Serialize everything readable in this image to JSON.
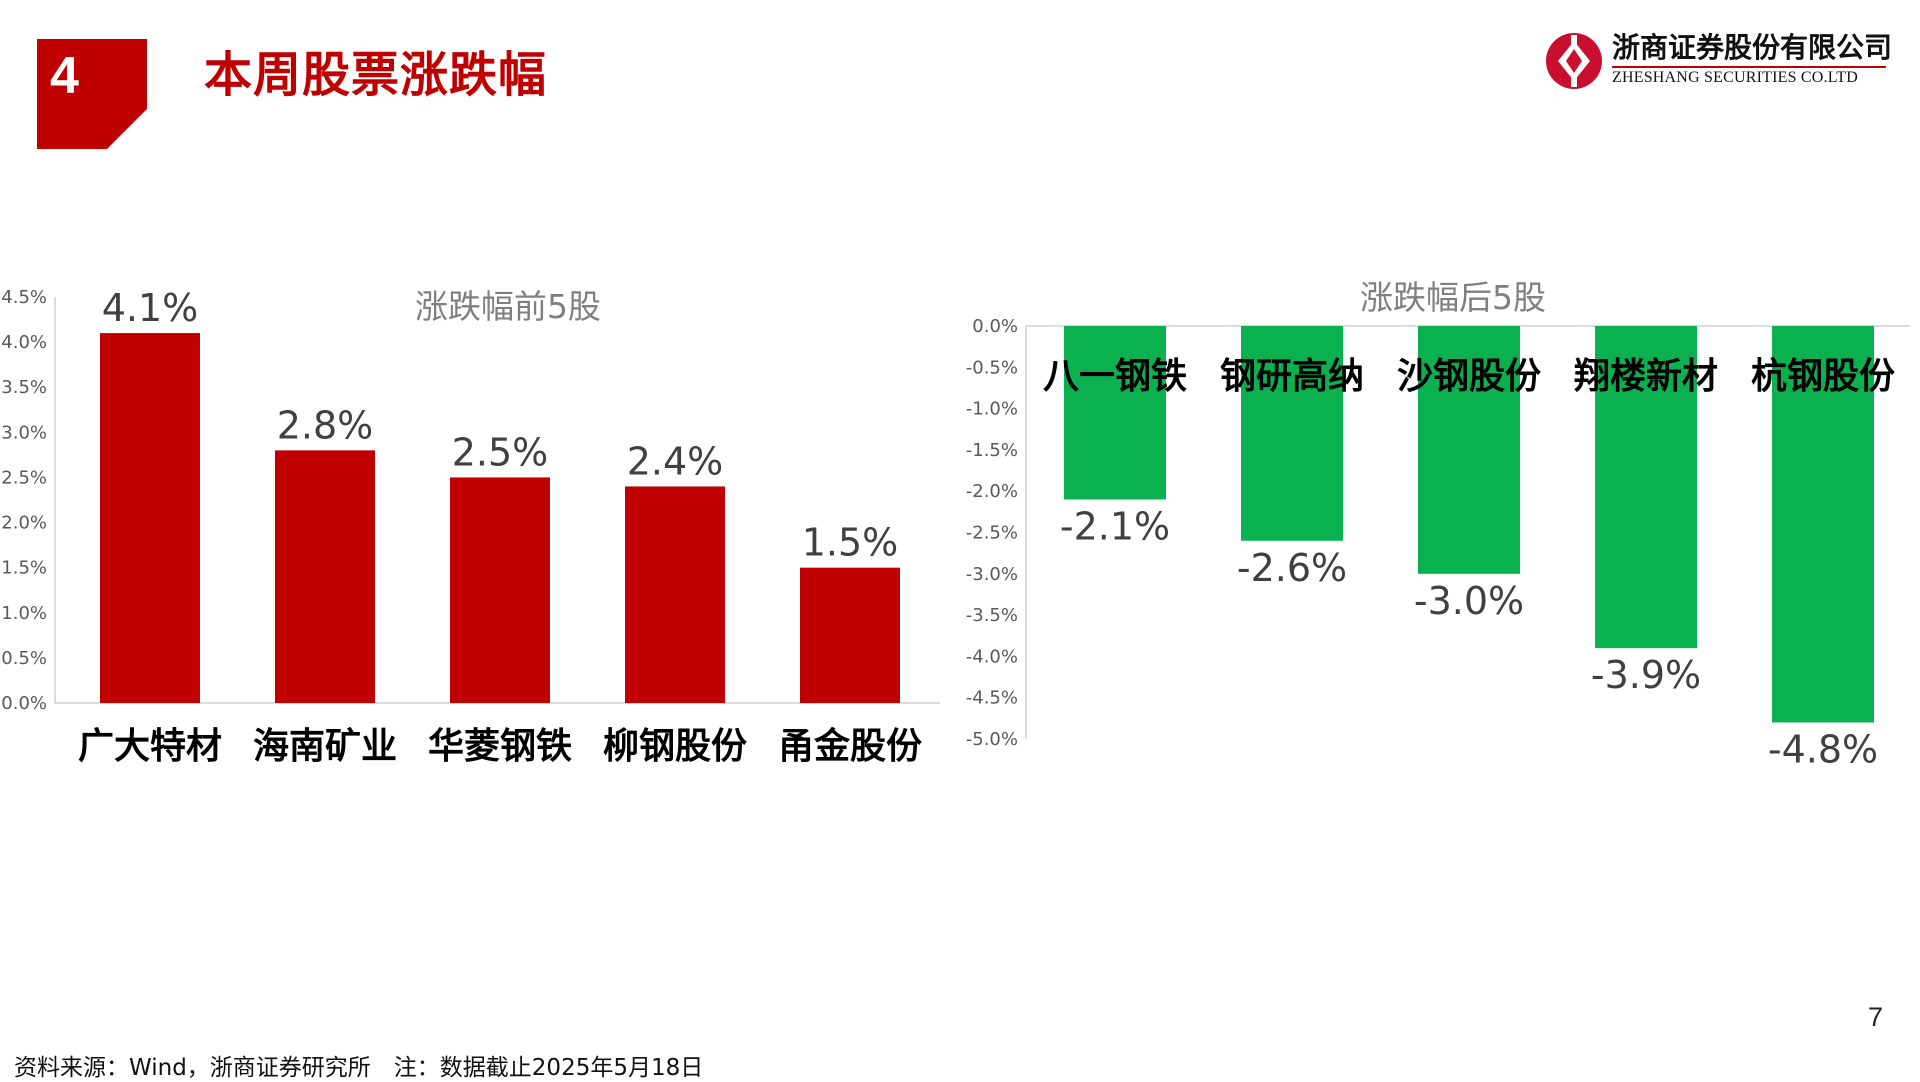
{
  "header": {
    "section_number": "4",
    "title": "本周股票涨跌幅",
    "accent_color": "#c00000"
  },
  "logo": {
    "name_cn": "浙商证券股份有限公司",
    "name_en": "ZHESHANG SECURITIES CO.LTD"
  },
  "chart_data": [
    {
      "type": "bar",
      "title": "涨跌幅前5股",
      "categories": [
        "广大特材",
        "海南矿业",
        "华菱钢铁",
        "柳钢股份",
        "甬金股份"
      ],
      "values": [
        4.1,
        2.8,
        2.5,
        2.4,
        1.5
      ],
      "value_format": "percent",
      "data_labels": [
        "4.1%",
        "2.8%",
        "2.5%",
        "2.4%",
        "1.5%"
      ],
      "ylim": [
        0,
        4.5
      ],
      "yticks": [
        "0.0%",
        "0.5%",
        "1.0%",
        "1.5%",
        "2.0%",
        "2.5%",
        "3.0%",
        "3.5%",
        "4.0%",
        "4.5%"
      ],
      "xlabel": "",
      "ylabel": "",
      "grid": false,
      "color": "#c00000"
    },
    {
      "type": "bar",
      "title": "涨跌幅后5股",
      "categories": [
        "八一钢铁",
        "钢研高纳",
        "沙钢股份",
        "翔楼新材",
        "杭钢股份"
      ],
      "values": [
        -2.1,
        -2.6,
        -3.0,
        -3.9,
        -4.8
      ],
      "value_format": "percent",
      "data_labels": [
        "-2.1%",
        "-2.6%",
        "-3.0%",
        "-3.9%",
        "-4.8%"
      ],
      "ylim": [
        -5.0,
        0
      ],
      "yticks": [
        "0.0%",
        "-0.5%",
        "-1.0%",
        "-1.5%",
        "-2.0%",
        "-2.5%",
        "-3.0%",
        "-3.5%",
        "-4.0%",
        "-4.5%",
        "-5.0%"
      ],
      "xlabel": "",
      "ylabel": "",
      "grid": false,
      "color": "#0bb04f"
    }
  ],
  "footer": {
    "page_number": "7",
    "source": "资料来源：Wind，浙商证券研究所　注：数据截止2025年5月18日"
  }
}
